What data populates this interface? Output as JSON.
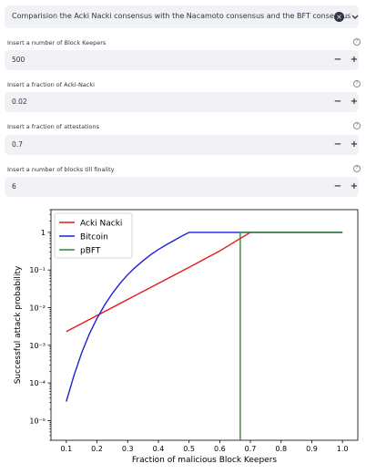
{
  "consensus_select": {
    "value": "Comparision the Acki Nacki consensus with the Nacamoto consensus and the BFT consensus",
    "clear_icon": "clear-x-icon",
    "dropdown_icon": "chevron-down-icon"
  },
  "inputs": [
    {
      "label": "Insert a number of Block Keepers",
      "value": "500",
      "minus": "−",
      "plus": "+"
    },
    {
      "label": "Insert a fraction of Acki-Nacki",
      "value": "0.02",
      "minus": "−",
      "plus": "+"
    },
    {
      "label": "Insert a fraction of attestations",
      "value": "0.7",
      "minus": "−",
      "plus": "+"
    },
    {
      "label": "Insert a number of blocks till finality",
      "value": "6",
      "minus": "−",
      "plus": "+"
    }
  ],
  "help_glyph": "?",
  "chart_data": {
    "type": "line",
    "xlabel": "Fraction of malicious Block Keepers",
    "ylabel": "Successful attack probability",
    "x_scale": "linear",
    "y_scale": "log",
    "xlim": [
      0.05,
      1.05
    ],
    "ylim": [
      3e-06,
      4
    ],
    "x_ticks": [
      0.1,
      0.2,
      0.3,
      0.4,
      0.5,
      0.6,
      0.7,
      0.8,
      0.9,
      1.0
    ],
    "x_tick_labels": [
      "0.1",
      "0.2",
      "0.3",
      "0.4",
      "0.5",
      "0.6",
      "0.7",
      "0.8",
      "0.9",
      "1.0"
    ],
    "y_ticks": [
      1e-05,
      0.0001,
      0.001,
      0.01,
      0.1,
      1
    ],
    "y_tick_labels": [
      "10⁻⁵",
      "10⁻⁴",
      "10⁻³",
      "10⁻²",
      "10⁻¹",
      "1"
    ],
    "legend_position": "top-left",
    "grid": false,
    "series": [
      {
        "name": "Acki Nacki",
        "color": "#e41a1c",
        "x": [
          0.1,
          0.2,
          0.3,
          0.4,
          0.5,
          0.6,
          0.7,
          0.8,
          0.9,
          1.0
        ],
        "y": [
          0.0023,
          0.0062,
          0.0165,
          0.044,
          0.118,
          0.32,
          1,
          1,
          1,
          1
        ]
      },
      {
        "name": "Bitcoin",
        "color": "#1f1fd6",
        "x": [
          0.1,
          0.125,
          0.15,
          0.175,
          0.2,
          0.225,
          0.25,
          0.275,
          0.3,
          0.325,
          0.35,
          0.375,
          0.4,
          0.425,
          0.45,
          0.475,
          0.5,
          0.6,
          0.7,
          0.8,
          0.9,
          1.0
        ],
        "y": [
          3.2e-05,
          0.00016,
          0.00063,
          0.002,
          0.0052,
          0.0118,
          0.0238,
          0.044,
          0.075,
          0.118,
          0.175,
          0.255,
          0.35,
          0.465,
          0.6,
          0.78,
          1,
          1,
          1,
          1,
          1,
          1
        ]
      },
      {
        "name": "pBFT",
        "color": "#2e8b2e",
        "x": [
          0.667,
          0.667,
          0.7,
          0.8,
          0.9,
          1.0
        ],
        "y": [
          3e-06,
          1,
          1,
          1,
          1,
          1
        ]
      }
    ]
  }
}
